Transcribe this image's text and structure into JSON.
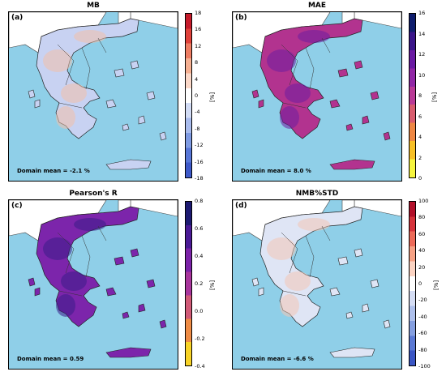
{
  "panels": [
    {
      "title": "MB",
      "label": "(a)",
      "mean_text": "Domain mean = -2.1 %",
      "unit": "[%]",
      "ticks": [
        "18",
        "16",
        "12",
        "8",
        "4",
        "0",
        "-4",
        "-8",
        "-12",
        "-16",
        "-18"
      ],
      "colors": [
        "#c61b2b",
        "#e0413a",
        "#ee7d63",
        "#f6b092",
        "#fbd8c8",
        "#ffffff",
        "#d2dcf5",
        "#a9bcee",
        "#7f9be3",
        "#5877d8",
        "#3e59c9"
      ],
      "map_base": "#c8d2f2",
      "map_accent": "#f3c0a9"
    },
    {
      "title": "MAE",
      "label": "(b)",
      "mean_text": "Domain mean = 8.0 %",
      "unit": "[%]",
      "ticks": [
        "16",
        "14",
        "12",
        "10",
        "8",
        "6",
        "4",
        "2",
        "0"
      ],
      "colors": [
        "#0f1d6d",
        "#3a1589",
        "#6a1aa3",
        "#9127a6",
        "#b93a96",
        "#d85c6e",
        "#ee8744",
        "#f8c026",
        "#f6f53e"
      ],
      "map_base": "#b2338f",
      "map_accent": "#6d1da0"
    },
    {
      "title": "Pearson's R",
      "label": "(c)",
      "mean_text": "Domain mean = 0.59",
      "unit": "[%]",
      "ticks": [
        "0.8",
        "0.6",
        "0.4",
        "0.2",
        "0.0",
        "-0.2",
        "-0.4"
      ],
      "colors": [
        "#1d1a72",
        "#4a1a96",
        "#7b22a8",
        "#a8359c",
        "#d15a77",
        "#ef8c45",
        "#f8d326"
      ],
      "map_base": "#7c25ab",
      "map_accent": "#3b1d88"
    },
    {
      "title": "NMB%STD",
      "label": "(d)",
      "mean_text": "Domain mean = -6.6 %",
      "unit": "[%]",
      "ticks": [
        "100",
        "80",
        "60",
        "40",
        "20",
        "0",
        "-20",
        "-40",
        "-60",
        "-80",
        "-100"
      ],
      "colors": [
        "#b2102a",
        "#d6333b",
        "#ec6a58",
        "#f6a184",
        "#fbd3c2",
        "#ffffff",
        "#d5ddf4",
        "#aec0ec",
        "#859fe0",
        "#5b79d4",
        "#3a55c4"
      ],
      "map_base": "#dfe5f5",
      "map_accent": "#f2c6b4"
    }
  ]
}
